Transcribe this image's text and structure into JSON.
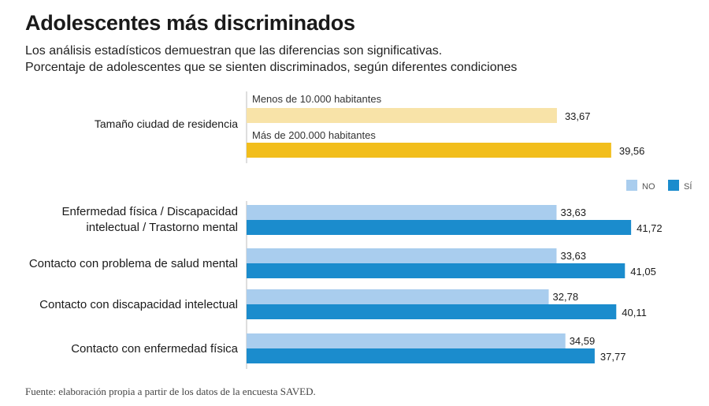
{
  "title": "Adolescentes más discriminados",
  "subtitle_1": "Los análisis estadísticos demuestran que las diferencias son significativas.",
  "subtitle_2": "Porcentaje de adolescentes que se sienten discriminados, según diferentes condiciones",
  "source": "Fuente: elaboración propia a partir de los datos de la encuesta SAVED.",
  "colors": {
    "residence_small": "#f8e3a8",
    "residence_large": "#f2be1c",
    "no": "#a9cdee",
    "si": "#1b8ccd",
    "axis": "#bdbdbd"
  },
  "chart_data": [
    {
      "type": "bar",
      "orientation": "horizontal",
      "category": "Tamaño ciudad de residencia",
      "series": [
        {
          "name": "Menos de 10.000 habitantes",
          "value": 33.67,
          "label": "33,67"
        },
        {
          "name": "Más de 200.000 habitantes",
          "value": 39.56,
          "label": "39,56"
        }
      ],
      "xlim": [
        0,
        42
      ]
    },
    {
      "type": "bar",
      "orientation": "horizontal",
      "categories": [
        "Enfermedad física / Discapacidad|intelectual / Trastorno mental",
        "Contacto con problema de salud mental",
        "Contacto con discapacidad intelectual",
        "Contacto con enfermedad física"
      ],
      "series": [
        {
          "name": "NO",
          "values": [
            33.63,
            33.63,
            32.78,
            34.59
          ],
          "labels": [
            "33,63",
            "33,63",
            "32,78",
            "34,59"
          ]
        },
        {
          "name": "SÍ",
          "values": [
            41.72,
            41.05,
            40.11,
            37.77
          ],
          "labels": [
            "41,72",
            "41,05",
            "40,11",
            "37,77"
          ]
        }
      ],
      "legend": "top-right",
      "xlim": [
        0,
        42
      ]
    }
  ]
}
